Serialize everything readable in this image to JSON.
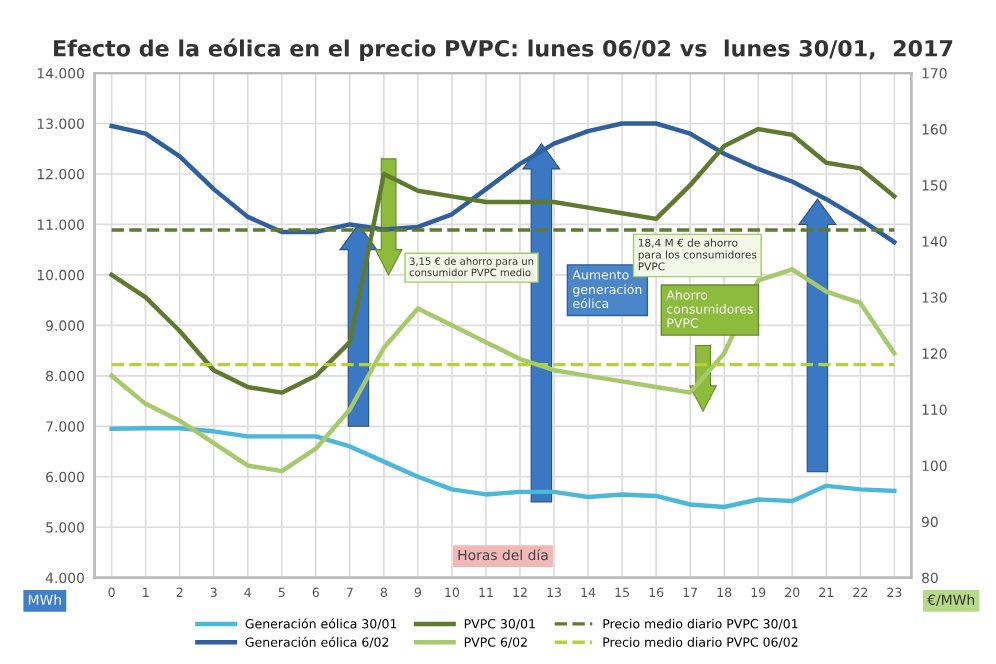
{
  "chart_data": {
    "type": "line",
    "title": "Efecto de la eólica en el precio PVPC: lunes 06/02 vs  lunes 30/01,  2017",
    "xlabel": "Horas del día",
    "ylabel": "MWh",
    "y2label": "€/MWh",
    "categories": [
      "0",
      "1",
      "2",
      "3",
      "4",
      "5",
      "6",
      "7",
      "8",
      "9",
      "10",
      "11",
      "12",
      "13",
      "14",
      "15",
      "16",
      "17",
      "18",
      "19",
      "20",
      "21",
      "22",
      "23"
    ],
    "series": [
      {
        "name": "Generación eólica 30/01",
        "color": "#4bb8d8",
        "values": [
          6950,
          6960,
          6960,
          6900,
          6800,
          6800,
          6800,
          6600,
          6300,
          6000,
          5750,
          5650,
          5700,
          5700,
          5600,
          5650,
          5620,
          5450,
          5400,
          5550,
          5520,
          5820,
          5750,
          5720
        ]
      },
      {
        "name": "Generación eólica 6/02",
        "color": "#2f5f9e",
        "values": [
          12950,
          12800,
          12350,
          11700,
          11150,
          10850,
          10850,
          11000,
          10900,
          10950,
          11200,
          11700,
          12200,
          12600,
          12850,
          13000,
          13000,
          12800,
          12400,
          12100,
          11850,
          11500,
          11100,
          10650
        ]
      },
      {
        "name": "PVPC 30/01",
        "color": "#5f7a2e",
        "axis": "y2",
        "values": [
          134,
          130,
          124,
          117,
          114,
          113,
          116,
          122,
          152,
          149,
          148,
          147,
          147,
          147,
          146,
          145,
          144,
          150,
          157,
          160,
          159,
          154,
          153,
          148
        ]
      },
      {
        "name": "PVPC 6/02",
        "color": "#a6c96a",
        "axis": "y2",
        "values": [
          116,
          111,
          108,
          104,
          100,
          99,
          103,
          110,
          121,
          128,
          125,
          122,
          119,
          117,
          116,
          115,
          114,
          113,
          120,
          133,
          135,
          131,
          129,
          120
        ]
      },
      {
        "name": "Precio medio diario PVPC 30/01",
        "color": "#5f7a2e",
        "axis": "y2",
        "line_style": "dashed",
        "values": [
          142,
          142,
          142,
          142,
          142,
          142,
          142,
          142,
          142,
          142,
          142,
          142,
          142,
          142,
          142,
          142,
          142,
          142,
          142,
          142,
          142,
          142,
          142,
          142
        ]
      },
      {
        "name": "Precio medio diario PVPC 06/02",
        "color": "#b5d335",
        "axis": "y2",
        "line_style": "dashed",
        "values": [
          118,
          118,
          118,
          118,
          118,
          118,
          118,
          118,
          118,
          118,
          118,
          118,
          118,
          118,
          118,
          118,
          118,
          118,
          118,
          118,
          118,
          118,
          118,
          118
        ]
      }
    ],
    "ylim": [
      4000,
      14000
    ],
    "yticks": [
      {
        "value": 4000,
        "label": "4.000"
      },
      {
        "value": 5000,
        "label": "5.000"
      },
      {
        "value": 6000,
        "label": "6.000"
      },
      {
        "value": 7000,
        "label": "7.000"
      },
      {
        "value": 8000,
        "label": "8.000"
      },
      {
        "value": 9000,
        "label": "9.000"
      },
      {
        "value": 10000,
        "label": "10.000"
      },
      {
        "value": 11000,
        "label": "11.000"
      },
      {
        "value": 12000,
        "label": "12.000"
      },
      {
        "value": 13000,
        "label": "13.000"
      },
      {
        "value": 14000,
        "label": "14.000"
      }
    ],
    "y2lim": [
      80,
      170
    ],
    "y2ticks": [
      80,
      90,
      100,
      110,
      120,
      130,
      140,
      150,
      160,
      170
    ],
    "annotations": [
      "3,15 € de ahorro para un consumidor PVPC medio",
      "Aumento generación eólica",
      "Ahorro consumidores PVPC",
      "18,4 M € de ahorro para los consumidores PVPC"
    ],
    "grid": true,
    "legend": "bottom",
    "marker": "none"
  }
}
